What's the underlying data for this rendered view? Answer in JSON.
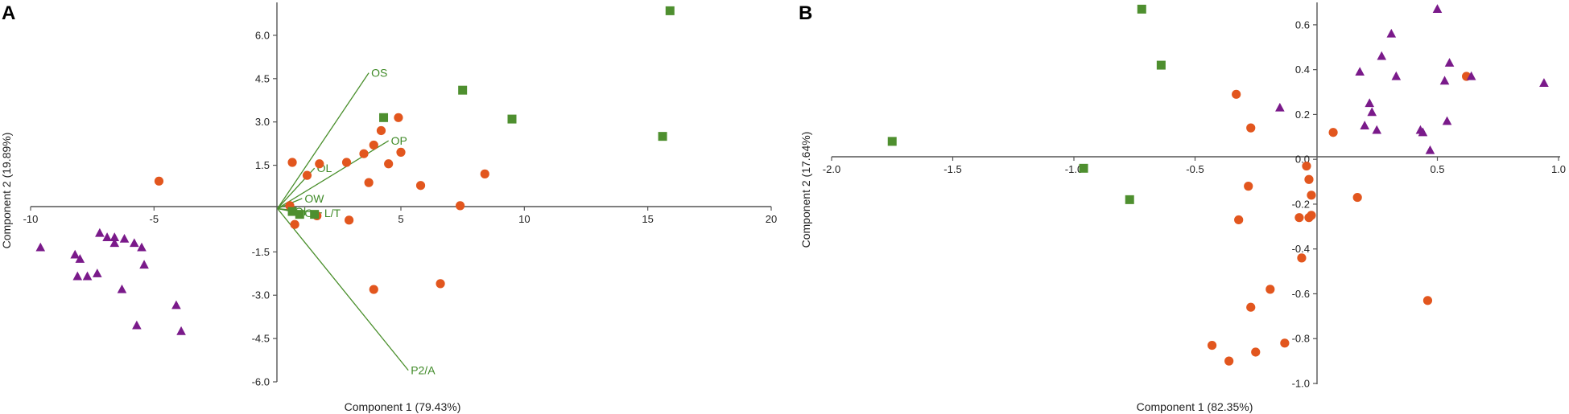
{
  "colors": {
    "circle": "#e2561e",
    "triangle": "#7a1a8a",
    "square": "#4e8f2f",
    "vector": "#4a8f2c",
    "axis": "#555555"
  },
  "chart_data": [
    {
      "panel": "A",
      "type": "scatter",
      "xlabel": "Component 1 (79.43%)",
      "ylabel": "Component 2 (19.89%)",
      "xlim": [
        -10,
        20
      ],
      "ylim": [
        -6,
        7
      ],
      "xticks": [
        -10,
        -5,
        5,
        10,
        15,
        20
      ],
      "xtick_labels": [
        "-10",
        "-5",
        "5",
        "10",
        "15",
        "20"
      ],
      "yticks": [
        6,
        4.5,
        3,
        1.5,
        -1.5,
        -3,
        -4.5,
        -6
      ],
      "ytick_labels": [
        "6.0",
        "4.5",
        "3.0",
        "1.5",
        "-1.5",
        "-3.0",
        "-4.5",
        "-6.0"
      ],
      "series": [
        {
          "marker": "circle",
          "points": [
            [
              -4.8,
              0.95
            ],
            [
              0.6,
              1.6
            ],
            [
              1.2,
              1.15
            ],
            [
              1.7,
              1.55
            ],
            [
              2.8,
              1.6
            ],
            [
              3.5,
              1.9
            ],
            [
              3.9,
              2.2
            ],
            [
              4.2,
              2.7
            ],
            [
              4.9,
              3.15
            ],
            [
              4.5,
              1.55
            ],
            [
              5.0,
              1.95
            ],
            [
              3.7,
              0.9
            ],
            [
              5.8,
              0.8
            ],
            [
              7.4,
              0.1
            ],
            [
              8.4,
              1.2
            ],
            [
              0.5,
              0.1
            ],
            [
              0.7,
              -0.55
            ],
            [
              1.6,
              -0.25
            ],
            [
              2.9,
              -0.4
            ],
            [
              3.9,
              -2.8
            ],
            [
              6.6,
              -2.6
            ]
          ]
        },
        {
          "marker": "triangle",
          "points": [
            [
              -9.6,
              -1.35
            ],
            [
              -7.2,
              -0.85
            ],
            [
              -6.9,
              -1.0
            ],
            [
              -6.6,
              -1.0
            ],
            [
              -6.2,
              -1.05
            ],
            [
              -5.8,
              -1.2
            ],
            [
              -5.5,
              -1.35
            ],
            [
              -6.6,
              -1.2
            ],
            [
              -8.2,
              -1.6
            ],
            [
              -8.0,
              -1.75
            ],
            [
              -8.1,
              -2.35
            ],
            [
              -7.7,
              -2.35
            ],
            [
              -7.3,
              -2.25
            ],
            [
              -5.4,
              -1.95
            ],
            [
              -6.3,
              -2.8
            ],
            [
              -5.7,
              -4.05
            ],
            [
              -4.1,
              -3.35
            ],
            [
              -3.9,
              -4.25
            ]
          ]
        },
        {
          "marker": "square",
          "points": [
            [
              15.9,
              6.85
            ],
            [
              7.5,
              4.1
            ],
            [
              9.5,
              3.1
            ],
            [
              4.3,
              3.15
            ],
            [
              15.6,
              2.5
            ],
            [
              0.6,
              -0.1
            ],
            [
              0.9,
              -0.2
            ],
            [
              1.5,
              -0.2
            ]
          ]
        }
      ],
      "vectors": [
        {
          "label": "OS",
          "end": [
            3.7,
            4.7
          ]
        },
        {
          "label": "OP",
          "end": [
            4.5,
            2.35
          ]
        },
        {
          "label": "OL",
          "end": [
            1.5,
            1.4
          ]
        },
        {
          "label": "OW",
          "end": [
            1.0,
            0.35
          ]
        },
        {
          "label": "P2/A",
          "end": [
            5.3,
            -5.6
          ]
        },
        {
          "label": "Ol",
          "end": [
            0.6,
            -0.1
          ]
        },
        {
          "label": "Oa",
          "end": [
            1.0,
            -0.15
          ]
        },
        {
          "label": "L/T",
          "end": [
            1.8,
            -0.15
          ]
        }
      ]
    },
    {
      "panel": "B",
      "type": "scatter",
      "xlabel": "Component 1 (82.35%)",
      "ylabel": "Component 2 (17.64%)",
      "xlim": [
        -2.0,
        1.0
      ],
      "ylim": [
        -1.0,
        0.7
      ],
      "xticks": [
        -2.0,
        -1.5,
        -1.0,
        -0.5,
        0.5,
        1.0
      ],
      "xtick_labels": [
        "-2.0",
        "-1.5",
        "-1.0",
        "-0.5",
        "0.5",
        "1.0"
      ],
      "yticks": [
        0.6,
        0.4,
        0.2,
        0.0,
        -0.2,
        -0.4,
        -0.6,
        -0.8,
        -1.0
      ],
      "ytick_labels": [
        "0.6",
        "0.4",
        "0.2",
        "0.0",
        "-0.2",
        "-0.4",
        "-0.6",
        "-0.8",
        "-1.0"
      ],
      "series": [
        {
          "marker": "circle",
          "points": [
            [
              -0.33,
              0.29
            ],
            [
              -0.27,
              0.14
            ],
            [
              0.07,
              0.12
            ],
            [
              0.62,
              0.37
            ],
            [
              -0.04,
              -0.03
            ],
            [
              -0.03,
              -0.09
            ],
            [
              -0.02,
              -0.16
            ],
            [
              -0.28,
              -0.12
            ],
            [
              -0.32,
              -0.27
            ],
            [
              0.17,
              -0.17
            ],
            [
              -0.07,
              -0.26
            ],
            [
              -0.03,
              -0.26
            ],
            [
              -0.02,
              -0.25
            ],
            [
              -0.06,
              -0.44
            ],
            [
              -0.19,
              -0.58
            ],
            [
              -0.27,
              -0.66
            ],
            [
              0.46,
              -0.63
            ],
            [
              -0.43,
              -0.83
            ],
            [
              -0.36,
              -0.9
            ],
            [
              -0.25,
              -0.86
            ],
            [
              -0.13,
              -0.82
            ]
          ]
        },
        {
          "marker": "triangle",
          "points": [
            [
              0.5,
              0.67
            ],
            [
              0.31,
              0.56
            ],
            [
              0.27,
              0.46
            ],
            [
              0.55,
              0.43
            ],
            [
              0.18,
              0.39
            ],
            [
              0.33,
              0.37
            ],
            [
              0.64,
              0.37
            ],
            [
              0.94,
              0.34
            ],
            [
              0.53,
              0.35
            ],
            [
              0.22,
              0.25
            ],
            [
              0.23,
              0.21
            ],
            [
              0.2,
              0.15
            ],
            [
              0.25,
              0.13
            ],
            [
              0.43,
              0.13
            ],
            [
              0.44,
              0.12
            ],
            [
              0.54,
              0.17
            ],
            [
              0.47,
              0.04
            ],
            [
              -0.15,
              0.23
            ]
          ]
        },
        {
          "marker": "square",
          "points": [
            [
              -0.72,
              0.67
            ],
            [
              -0.64,
              0.42
            ],
            [
              -1.75,
              0.08
            ],
            [
              -0.96,
              -0.04
            ],
            [
              -0.77,
              -0.18
            ]
          ]
        }
      ]
    }
  ]
}
